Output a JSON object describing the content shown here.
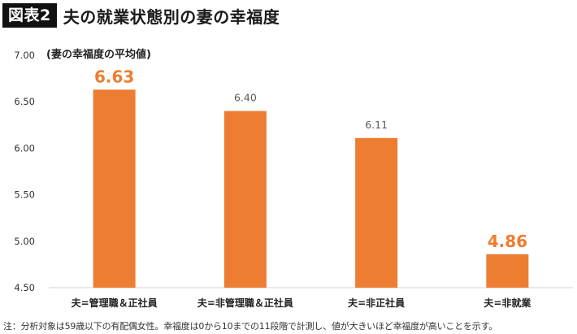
{
  "header": {
    "figure_label": "図表2",
    "title": "夫の就業状態別の妻の幸福度"
  },
  "chart_data": {
    "type": "bar",
    "title": "夫の就業状態別の妻の幸福度",
    "ylabel": "(妻の幸福度の平均値)",
    "xlabel": "",
    "ylim": [
      4.5,
      7.0
    ],
    "yticks": [
      "7.00",
      "6.50",
      "6.00",
      "5.50",
      "5.00",
      "4.50"
    ],
    "categories": [
      "夫=管理職＆正社員",
      "夫=非管理職＆正社員",
      "夫=非正社員",
      "夫=非就業"
    ],
    "values": [
      6.63,
      6.4,
      6.11,
      4.86
    ],
    "value_labels": [
      "6.63",
      "6.40",
      "6.11",
      "4.86"
    ],
    "highlighted": [
      true,
      false,
      false,
      true
    ],
    "bar_color": "#ED7D31",
    "highlight_label_color": "#ED7D31",
    "normal_label_color": "#595959",
    "grid": false,
    "legend": "none"
  },
  "footnote": "注：分析対象は59歳以下の有配偶女性。幸福度は0から10までの11段階で計測し、値が大きいほど幸福度が高いことを示す。"
}
